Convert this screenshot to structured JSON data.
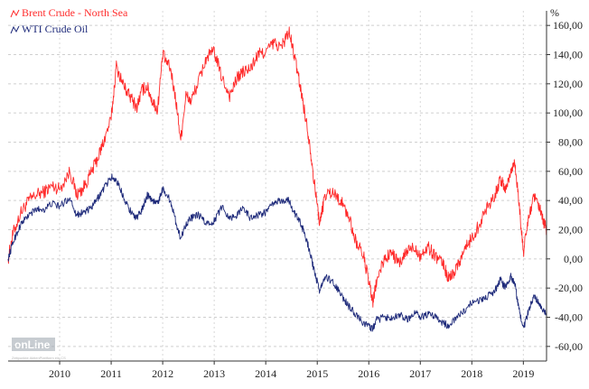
{
  "chart_data": {
    "type": "line",
    "ylabel": "%",
    "ylim": [
      -70,
      170
    ],
    "yticks": [
      160,
      140,
      120,
      100,
      80,
      60,
      40,
      20,
      0,
      -20,
      -40,
      -60
    ],
    "ytick_labels": [
      "160,00",
      "140,00",
      "120,00",
      "100,00",
      "80,00",
      "60,00",
      "40,00",
      "20,00",
      "0,00",
      "-20,00",
      "-40,00",
      "-60,00"
    ],
    "xlim": [
      2009.0,
      2019.45
    ],
    "xticks": [
      2010,
      2011,
      2012,
      2013,
      2014,
      2015,
      2016,
      2017,
      2018,
      2019
    ],
    "xtick_labels": [
      "2010",
      "2011",
      "2012",
      "2013",
      "2014",
      "2015",
      "2016",
      "2017",
      "2018",
      "2019"
    ],
    "grid": true,
    "legend_position": "top-left",
    "series": [
      {
        "name": "Brent Crude - North Sea",
        "color": "#ff2a2a",
        "x": [
          2009.0,
          2009.1,
          2009.25,
          2009.4,
          2009.55,
          2009.7,
          2009.85,
          2010.0,
          2010.2,
          2010.33,
          2010.45,
          2010.6,
          2010.75,
          2010.85,
          2011.0,
          2011.1,
          2011.25,
          2011.35,
          2011.5,
          2011.6,
          2011.7,
          2011.8,
          2011.9,
          2012.0,
          2012.15,
          2012.25,
          2012.35,
          2012.45,
          2012.55,
          2012.7,
          2012.85,
          2013.0,
          2013.15,
          2013.3,
          2013.45,
          2013.55,
          2013.7,
          2013.85,
          2014.0,
          2014.15,
          2014.3,
          2014.45,
          2014.55,
          2014.65,
          2014.75,
          2014.85,
          2014.95,
          2015.05,
          2015.15,
          2015.3,
          2015.45,
          2015.6,
          2015.75,
          2015.9,
          2016.0,
          2016.08,
          2016.15,
          2016.3,
          2016.45,
          2016.6,
          2016.75,
          2016.9,
          2017.0,
          2017.15,
          2017.3,
          2017.45,
          2017.55,
          2017.7,
          2017.85,
          2018.0,
          2018.15,
          2018.3,
          2018.45,
          2018.55,
          2018.65,
          2018.75,
          2018.83,
          2018.9,
          2019.0,
          2019.1,
          2019.2,
          2019.3,
          2019.38,
          2019.45
        ],
        "values": [
          0,
          18,
          32,
          40,
          44,
          46,
          50,
          48,
          60,
          44,
          48,
          58,
          70,
          80,
          96,
          132,
          118,
          112,
          104,
          116,
          118,
          108,
          102,
          140,
          130,
          110,
          82,
          112,
          108,
          122,
          138,
          142,
          124,
          112,
          124,
          128,
          130,
          140,
          142,
          148,
          145,
          156,
          140,
          122,
          102,
          80,
          50,
          24,
          44,
          46,
          40,
          30,
          12,
          2,
          -16,
          -30,
          -16,
          0,
          4,
          -4,
          6,
          8,
          2,
          8,
          2,
          -4,
          -14,
          -6,
          6,
          14,
          24,
          36,
          44,
          54,
          48,
          58,
          68,
          44,
          4,
          28,
          42,
          36,
          26,
          20
        ]
      },
      {
        "name": "WTI Crude Oil",
        "color": "#1e2a7a",
        "x": [
          2009.0,
          2009.1,
          2009.25,
          2009.4,
          2009.55,
          2009.7,
          2009.85,
          2010.0,
          2010.2,
          2010.33,
          2010.45,
          2010.6,
          2010.75,
          2010.85,
          2011.0,
          2011.1,
          2011.25,
          2011.35,
          2011.5,
          2011.6,
          2011.7,
          2011.8,
          2011.9,
          2012.0,
          2012.15,
          2012.25,
          2012.35,
          2012.45,
          2012.55,
          2012.7,
          2012.85,
          2013.0,
          2013.15,
          2013.3,
          2013.45,
          2013.55,
          2013.7,
          2013.85,
          2014.0,
          2014.15,
          2014.3,
          2014.45,
          2014.55,
          2014.65,
          2014.75,
          2014.85,
          2014.95,
          2015.05,
          2015.15,
          2015.3,
          2015.45,
          2015.6,
          2015.75,
          2015.9,
          2016.0,
          2016.08,
          2016.15,
          2016.3,
          2016.45,
          2016.6,
          2016.75,
          2016.9,
          2017.0,
          2017.15,
          2017.3,
          2017.45,
          2017.55,
          2017.7,
          2017.85,
          2018.0,
          2018.15,
          2018.3,
          2018.45,
          2018.55,
          2018.65,
          2018.75,
          2018.83,
          2018.9,
          2019.0,
          2019.1,
          2019.2,
          2019.3,
          2019.38,
          2019.45
        ],
        "values": [
          0,
          12,
          24,
          30,
          34,
          34,
          38,
          36,
          42,
          30,
          32,
          34,
          42,
          48,
          56,
          54,
          42,
          34,
          28,
          34,
          44,
          40,
          38,
          48,
          40,
          26,
          14,
          24,
          28,
          30,
          24,
          26,
          36,
          28,
          30,
          36,
          28,
          30,
          32,
          38,
          40,
          40,
          32,
          26,
          18,
          6,
          -10,
          -22,
          -12,
          -16,
          -24,
          -32,
          -38,
          -44,
          -46,
          -48,
          -42,
          -40,
          -40,
          -38,
          -42,
          -36,
          -40,
          -38,
          -40,
          -44,
          -46,
          -40,
          -36,
          -30,
          -28,
          -26,
          -22,
          -14,
          -20,
          -12,
          -16,
          -32,
          -48,
          -36,
          -26,
          -30,
          -36,
          -38
        ]
      }
    ]
  },
  "watermark": {
    "logo_text": "onLine",
    "sub_text": "Zeitpunkte AktienPlattform ein CS"
  }
}
